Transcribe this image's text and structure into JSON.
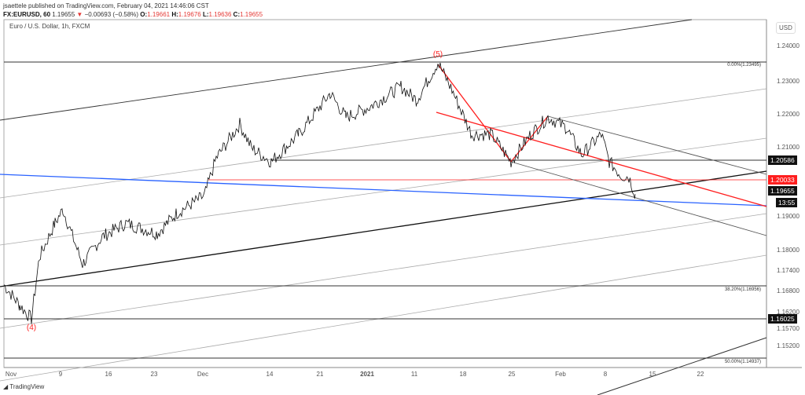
{
  "header": {
    "line1": "jsaettele published on TradingView.com, February 04, 2021 14:46:06 CST",
    "symbol": "FX:EURUSD, 60",
    "last": "1.19655",
    "change": "−0.00693 (−0.58%)",
    "o": "1.19661",
    "h": "1.19676",
    "l": "1.19636",
    "c": "1.19655"
  },
  "chart_title": "Euro / U.S. Dollar, 1h, FXCM",
  "currency": "USD",
  "price_axis": [
    "1.24000",
    "1.23000",
    "1.22000",
    "1.21000",
    "1.19000",
    "1.18000",
    "1.17400",
    "1.16800",
    "1.16200",
    "1.15700",
    "1.15200"
  ],
  "price_labels": {
    "a": "1.20586",
    "b": "1.20033",
    "c": "1.19655",
    "countdown": "13:55",
    "d": "1.16025"
  },
  "time_axis": [
    "Nov",
    "9",
    "16",
    "23",
    "Dec",
    "14",
    "21",
    "2021",
    "11",
    "18",
    "25",
    "Feb",
    "8",
    "15",
    "22"
  ],
  "fib": {
    "f0": "0.00%(1.23495)",
    "f38": "38.20%(1.16956)",
    "f50": "50.00%(1.14937)"
  },
  "waves": {
    "w5": "(5)",
    "w4": "(4)"
  },
  "footer": "TradingView",
  "colors": {
    "red": "#ff1e1e",
    "blue": "#2962ff",
    "down": "#e53935"
  }
}
